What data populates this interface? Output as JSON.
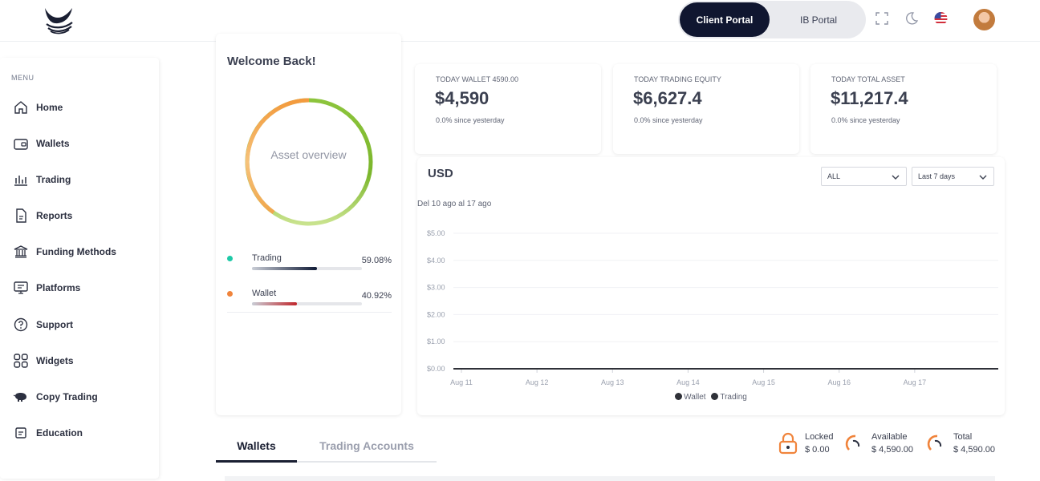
{
  "header": {
    "portal_tabs": [
      {
        "label": "Client Portal",
        "active": true
      },
      {
        "label": "IB Portal",
        "active": false
      }
    ],
    "icons": [
      "fullscreen-icon",
      "moon-icon",
      "us-flag-icon",
      "user-avatar"
    ],
    "accent_color": "#101630"
  },
  "sidebar": {
    "menu_label": "MENU",
    "items": [
      {
        "label": "Home",
        "icon": "home-icon"
      },
      {
        "label": "Wallets",
        "icon": "wallet-icon"
      },
      {
        "label": "Trading",
        "icon": "bar-chart-icon"
      },
      {
        "label": "Reports",
        "icon": "document-icon"
      },
      {
        "label": "Funding Methods",
        "icon": "bank-icon"
      },
      {
        "label": "Platforms",
        "icon": "monitor-icon"
      },
      {
        "label": "Support",
        "icon": "help-icon"
      },
      {
        "label": "Widgets",
        "icon": "grid-icon"
      },
      {
        "label": "Copy Trading",
        "icon": "piggy-bank-icon"
      },
      {
        "label": "Education",
        "icon": "book-icon"
      }
    ]
  },
  "welcome": {
    "title": "Welcome Back!",
    "donut_label": "Asset overview",
    "breakdown": [
      {
        "name": "Trading",
        "percent_text": "59.08%",
        "percent": 59.08,
        "dot_color": "#1ec9a7",
        "bar_color": "#0f1a35"
      },
      {
        "name": "Wallet",
        "percent_text": "40.92%",
        "percent": 40.92,
        "dot_color": "#f0843c",
        "bar_color": "#c0262b"
      }
    ]
  },
  "stats": [
    {
      "label": "TODAY WALLET 4590.00",
      "value": "$4,590",
      "sub": "0.0% since yesterday"
    },
    {
      "label": "TODAY TRADING EQUITY",
      "value": "$6,627.4",
      "sub": "0.0% since yesterday"
    },
    {
      "label": "TODAY TOTAL ASSET",
      "value": "$11,217.4",
      "sub": "0.0% since yesterday"
    }
  ],
  "chart": {
    "title": "USD",
    "filter_select": "ALL",
    "period_select": "Last 7 days",
    "date_range": "Del 10 ago al 17 ago"
  },
  "chart_data": {
    "type": "line",
    "x": [
      "Aug 11",
      "Aug 12",
      "Aug 13",
      "Aug 14",
      "Aug 15",
      "Aug 16",
      "Aug 17"
    ],
    "yticks": [
      "$0.00",
      "$1.00",
      "$2.00",
      "$3.00",
      "$4.00",
      "$5.00"
    ],
    "ylim": [
      0,
      5
    ],
    "series": [
      {
        "name": "Wallet",
        "values": [
          0,
          0,
          0,
          0,
          0,
          0,
          0
        ],
        "color": "#2f3138"
      },
      {
        "name": "Trading",
        "values": [
          0,
          0,
          0,
          0,
          0,
          0,
          0
        ],
        "color": "#2f3138"
      }
    ],
    "grid": true,
    "legend": "bottom"
  },
  "bottom_tabs": [
    {
      "label": "Wallets",
      "active": true
    },
    {
      "label": "Trading Accounts",
      "active": false
    }
  ],
  "balances": [
    {
      "label": "Locked",
      "value": "$ 0.00",
      "icon": "lock-icon"
    },
    {
      "label": "Available",
      "value": "$ 4,590.00",
      "icon": "spinner-icon"
    },
    {
      "label": "Total",
      "value": "$ 4,590.00",
      "icon": "spinner-icon"
    }
  ]
}
